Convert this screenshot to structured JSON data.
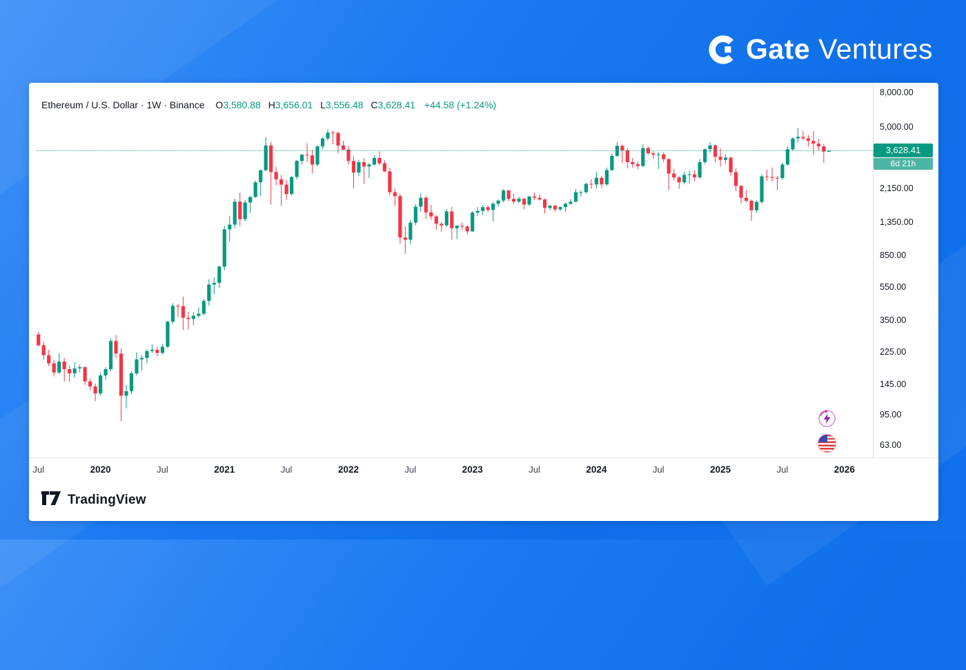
{
  "brand": {
    "gate": "Gate",
    "ventures": "Ventures"
  },
  "chart_header": {
    "symbol_title": "Ethereum / U.S. Dollar · 1W · Binance",
    "ohlc": {
      "o_key": "O",
      "o_val": "3,580.88",
      "h_key": "H",
      "h_val": "3,656.01",
      "l_key": "L",
      "l_val": "3,556.48",
      "c_key": "C",
      "c_val": "3,628.41"
    },
    "change": "+44.58 (+1.24%)"
  },
  "price_scale": {
    "ticks": [
      {
        "label": "8,000.00",
        "value": 8000
      },
      {
        "label": "5,000.00",
        "value": 5000
      },
      {
        "label": "2,150.00",
        "value": 2150
      },
      {
        "label": "1,350.00",
        "value": 1350
      },
      {
        "label": "850.00",
        "value": 850
      },
      {
        "label": "550.00",
        "value": 550
      },
      {
        "label": "350.00",
        "value": 350
      },
      {
        "label": "225.00",
        "value": 225
      },
      {
        "label": "145.00",
        "value": 145
      },
      {
        "label": "95.00",
        "value": 95
      },
      {
        "label": "63.00",
        "value": 63
      }
    ]
  },
  "price_line": {
    "label": "3,628.41",
    "value": 3628.41,
    "countdown": "6d 21h",
    "color": "#089981"
  },
  "time_axis": {
    "labels": [
      {
        "label": "Jul",
        "i": 0
      },
      {
        "label": "2020",
        "i": 12,
        "year": true
      },
      {
        "label": "Jul",
        "i": 24
      },
      {
        "label": "2021",
        "i": 36,
        "year": true
      },
      {
        "label": "Jul",
        "i": 48
      },
      {
        "label": "2022",
        "i": 60,
        "year": true
      },
      {
        "label": "Jul",
        "i": 72
      },
      {
        "label": "2023",
        "i": 84,
        "year": true
      },
      {
        "label": "Jul",
        "i": 96
      },
      {
        "label": "2024",
        "i": 108,
        "year": true
      },
      {
        "label": "Jul",
        "i": 120
      },
      {
        "label": "2025",
        "i": 132,
        "year": true
      },
      {
        "label": "Jul",
        "i": 144
      },
      {
        "label": "2026",
        "i": 156,
        "year": true
      }
    ]
  },
  "events": {
    "crypto_color": "#8e24aa",
    "flag_ring": "#ef9a9a"
  },
  "footer": {
    "tradingview": "TradingView"
  },
  "chart_data": {
    "type": "candlestick",
    "title": "Ethereum / U.S. Dollar",
    "interval": "1W",
    "exchange": "Binance",
    "yscale": "log",
    "ylim": [
      55,
      8800
    ],
    "x_slots": 162,
    "x_start": "2019-07",
    "x_end": "2025-11",
    "resolution": "approx. 2 candles per month read from the weekly chart",
    "colors": {
      "up": "#089981",
      "down": "#F23645"
    },
    "ohlc": [
      [
        290,
        300,
        245,
        250
      ],
      [
        250,
        262,
        205,
        218
      ],
      [
        218,
        235,
        188,
        195
      ],
      [
        195,
        205,
        163,
        172
      ],
      [
        172,
        224,
        168,
        200
      ],
      [
        200,
        210,
        152,
        180
      ],
      [
        180,
        190,
        151,
        170
      ],
      [
        170,
        198,
        160,
        182
      ],
      [
        182,
        192,
        172,
        185
      ],
      [
        185,
        188,
        145,
        152
      ],
      [
        152,
        158,
        135,
        142
      ],
      [
        142,
        148,
        116,
        129
      ],
      [
        129,
        172,
        125,
        165
      ],
      [
        165,
        185,
        155,
        180
      ],
      [
        180,
        275,
        175,
        265
      ],
      [
        265,
        288,
        210,
        223
      ],
      [
        223,
        240,
        88,
        125
      ],
      [
        125,
        145,
        105,
        133
      ],
      [
        133,
        175,
        128,
        170
      ],
      [
        170,
        227,
        165,
        206
      ],
      [
        206,
        218,
        176,
        210
      ],
      [
        210,
        237,
        195,
        231
      ],
      [
        231,
        253,
        225,
        235
      ],
      [
        235,
        245,
        215,
        225
      ],
      [
        225,
        255,
        220,
        245
      ],
      [
        245,
        350,
        240,
        346
      ],
      [
        346,
        446,
        335,
        430
      ],
      [
        430,
        440,
        370,
        428
      ],
      [
        428,
        488,
        308,
        365
      ],
      [
        365,
        395,
        310,
        359
      ],
      [
        359,
        395,
        330,
        375
      ],
      [
        375,
        420,
        365,
        386
      ],
      [
        386,
        470,
        376,
        460
      ],
      [
        460,
        620,
        432,
        576
      ],
      [
        576,
        635,
        505,
        590
      ],
      [
        590,
        750,
        550,
        737
      ],
      [
        737,
        1290,
        700,
        1230
      ],
      [
        1230,
        1475,
        1040,
        1313
      ],
      [
        1313,
        1875,
        1255,
        1800
      ],
      [
        1800,
        2040,
        1290,
        1416
      ],
      [
        1416,
        1850,
        1370,
        1780
      ],
      [
        1780,
        1950,
        1540,
        1919
      ],
      [
        1919,
        2400,
        1900,
        2350
      ],
      [
        2350,
        2800,
        1950,
        2773
      ],
      [
        2773,
        4372,
        2740,
        3900
      ],
      [
        3900,
        4100,
        1728,
        2706
      ],
      [
        2706,
        2900,
        2260,
        2450
      ],
      [
        2450,
        2600,
        1700,
        2274
      ],
      [
        2274,
        2430,
        1850,
        2000
      ],
      [
        2000,
        2550,
        1960,
        2530
      ],
      [
        2530,
        3190,
        2450,
        3150
      ],
      [
        3150,
        3460,
        3000,
        3433
      ],
      [
        3433,
        4028,
        3100,
        3400
      ],
      [
        3400,
        3680,
        2650,
        3000
      ],
      [
        3000,
        3900,
        2920,
        3850
      ],
      [
        3850,
        4380,
        3700,
        4288
      ],
      [
        4288,
        4870,
        4180,
        4650
      ],
      [
        4650,
        4760,
        3960,
        4631
      ],
      [
        4631,
        4700,
        3500,
        3900
      ],
      [
        3900,
        4150,
        3650,
        3682
      ],
      [
        3682,
        3860,
        3000,
        3150
      ],
      [
        3150,
        3370,
        2160,
        2688
      ],
      [
        2688,
        3200,
        2550,
        3100
      ],
      [
        3100,
        3280,
        2300,
        2919
      ],
      [
        2919,
        3060,
        2490,
        3000
      ],
      [
        3000,
        3400,
        2950,
        3283
      ],
      [
        3283,
        3580,
        2970,
        3050
      ],
      [
        3050,
        3180,
        2700,
        2730
      ],
      [
        2730,
        2870,
        1960,
        2050
      ],
      [
        2050,
        2150,
        1700,
        1942
      ],
      [
        1942,
        2000,
        1010,
        1100
      ],
      [
        1100,
        1280,
        880,
        1067
      ],
      [
        1067,
        1400,
        1000,
        1350
      ],
      [
        1350,
        1740,
        1300,
        1681
      ],
      [
        1681,
        2030,
        1570,
        1900
      ],
      [
        1900,
        1950,
        1420,
        1554
      ],
      [
        1554,
        1720,
        1400,
        1470
      ],
      [
        1470,
        1500,
        1220,
        1328
      ],
      [
        1328,
        1360,
        1190,
        1300
      ],
      [
        1300,
        1625,
        1270,
        1573
      ],
      [
        1573,
        1680,
        1070,
        1250
      ],
      [
        1250,
        1300,
        1075,
        1294
      ],
      [
        1294,
        1350,
        1220,
        1280
      ],
      [
        1280,
        1300,
        1150,
        1196
      ],
      [
        1196,
        1580,
        1190,
        1550
      ],
      [
        1550,
        1675,
        1480,
        1585
      ],
      [
        1585,
        1720,
        1500,
        1670
      ],
      [
        1670,
        1705,
        1560,
        1606
      ],
      [
        1606,
        1790,
        1370,
        1750
      ],
      [
        1750,
        1860,
        1680,
        1827
      ],
      [
        1827,
        2140,
        1780,
        2100
      ],
      [
        2100,
        2120,
        1810,
        1869
      ],
      [
        1869,
        2010,
        1740,
        1800
      ],
      [
        1800,
        1930,
        1770,
        1874
      ],
      [
        1874,
        1890,
        1620,
        1730
      ],
      [
        1730,
        1950,
        1700,
        1933
      ],
      [
        1933,
        2030,
        1850,
        1900
      ],
      [
        1900,
        1990,
        1825,
        1856
      ],
      [
        1856,
        1880,
        1530,
        1650
      ],
      [
        1650,
        1725,
        1600,
        1705
      ],
      [
        1705,
        1720,
        1565,
        1620
      ],
      [
        1620,
        1690,
        1580,
        1671
      ],
      [
        1671,
        1770,
        1560,
        1750
      ],
      [
        1750,
        1865,
        1720,
        1800
      ],
      [
        1800,
        2140,
        1780,
        2050
      ],
      [
        2050,
        2100,
        1930,
        2051
      ],
      [
        2051,
        2335,
        2020,
        2300
      ],
      [
        2300,
        2450,
        2150,
        2281
      ],
      [
        2281,
        2720,
        2160,
        2500
      ],
      [
        2500,
        2560,
        2170,
        2283
      ],
      [
        2283,
        2870,
        2240,
        2780
      ],
      [
        2780,
        3490,
        2750,
        3380
      ],
      [
        3380,
        4090,
        3320,
        3880
      ],
      [
        3880,
        3950,
        3060,
        3647
      ],
      [
        3647,
        3730,
        2850,
        3100
      ],
      [
        3100,
        3290,
        2865,
        3014
      ],
      [
        3014,
        3120,
        2810,
        2940
      ],
      [
        2940,
        3970,
        2900,
        3762
      ],
      [
        3762,
        3850,
        3430,
        3500
      ],
      [
        3500,
        3600,
        3240,
        3438
      ],
      [
        3438,
        3560,
        2820,
        3450
      ],
      [
        3450,
        3540,
        3090,
        3232
      ],
      [
        3232,
        3280,
        2110,
        2650
      ],
      [
        2650,
        2820,
        2420,
        2513
      ],
      [
        2513,
        2560,
        2150,
        2350
      ],
      [
        2350,
        2720,
        2280,
        2602
      ],
      [
        2602,
        2760,
        2310,
        2620
      ],
      [
        2620,
        2770,
        2380,
        2518
      ],
      [
        2518,
        3240,
        2470,
        3100
      ],
      [
        3100,
        3740,
        3020,
        3703
      ],
      [
        3703,
        4100,
        3530,
        3900
      ],
      [
        3900,
        3980,
        3100,
        3336
      ],
      [
        3336,
        3740,
        2920,
        3200
      ],
      [
        3200,
        3450,
        3020,
        3300
      ],
      [
        3300,
        3330,
        2560,
        2700
      ],
      [
        2700,
        2850,
        2080,
        2237
      ],
      [
        2237,
        2260,
        1755,
        1900
      ],
      [
        1900,
        2110,
        1780,
        1822
      ],
      [
        1822,
        1860,
        1385,
        1600
      ],
      [
        1600,
        1830,
        1540,
        1794
      ],
      [
        1794,
        2620,
        1750,
        2550
      ],
      [
        2550,
        2790,
        2390,
        2530
      ],
      [
        2530,
        2880,
        2370,
        2500
      ],
      [
        2500,
        2560,
        2110,
        2488
      ],
      [
        2488,
        3080,
        2440,
        3000
      ],
      [
        3000,
        3860,
        2950,
        3700
      ],
      [
        3700,
        4350,
        3620,
        4300
      ],
      [
        4300,
        4955,
        4060,
        4390
      ],
      [
        4390,
        4760,
        4200,
        4300
      ],
      [
        4300,
        4500,
        3830,
        4150
      ],
      [
        4150,
        4760,
        3435,
        4000
      ],
      [
        4000,
        4270,
        3650,
        3850
      ],
      [
        3850,
        3980,
        3060,
        3580
      ],
      [
        3580.88,
        3656.01,
        3556.48,
        3628.41
      ]
    ]
  }
}
